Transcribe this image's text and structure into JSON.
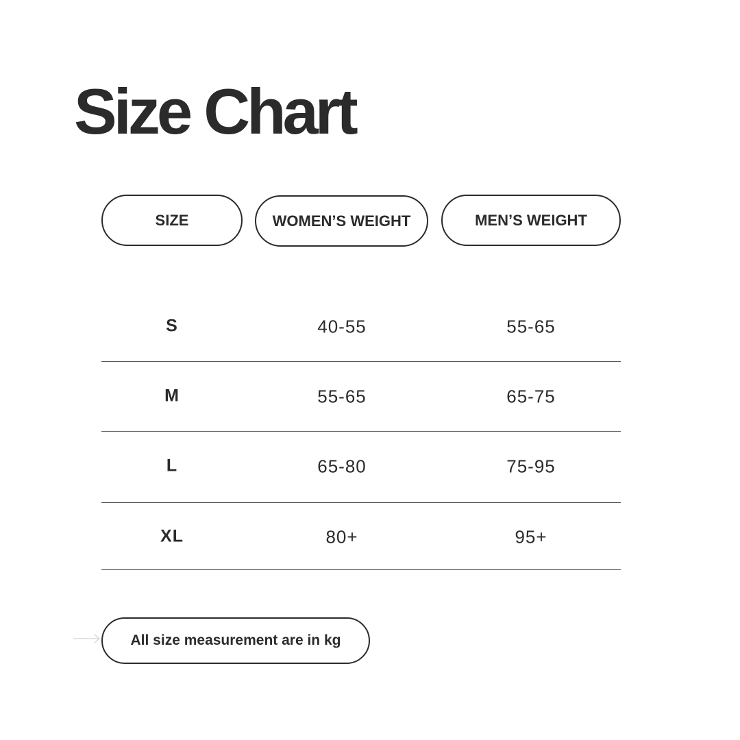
{
  "title": "Size Chart",
  "headers": [
    "SIZE",
    "WOMEN’S WEIGHT",
    "MEN’S WEIGHT"
  ],
  "rows": [
    {
      "size": "S",
      "women": "40-55",
      "men": "55-65"
    },
    {
      "size": "M",
      "women": "55-65",
      "men": "65-75"
    },
    {
      "size": "L",
      "women": "65-80",
      "men": "75-95"
    },
    {
      "size": "XL",
      "women": "80+",
      "men": "95+"
    }
  ],
  "note": "All size measurement are in kg",
  "colors": {
    "text": "#2b2b2b",
    "arrow": "#d8d8d8",
    "background": "#ffffff"
  },
  "icons": {
    "note": "arrow-right-icon"
  }
}
